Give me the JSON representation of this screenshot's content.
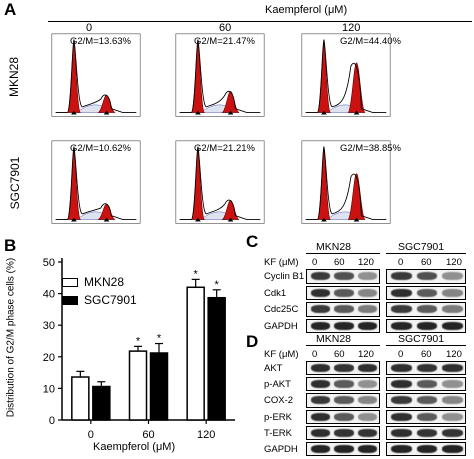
{
  "panels": {
    "A": "A",
    "B": "B",
    "C": "C",
    "D": "D"
  },
  "panelA": {
    "treatment_label": "Kaempferol (μM)",
    "doses": [
      "0",
      "60",
      "120"
    ],
    "cell_lines": [
      "MKN28",
      "SGC7901"
    ],
    "g2m": [
      [
        "G2/M=13.63%",
        "G2/M=21.47%",
        "G2/M=44.40%"
      ],
      [
        "G2/M=10.62%",
        "G2/M=21.21%",
        "G2/M=38.85%"
      ]
    ]
  },
  "chart_data": {
    "type": "bar",
    "categories": [
      "0",
      "60",
      "120"
    ],
    "xlabel": "Kaempferol (μM)",
    "ylabel": "Distribution of G2/M phase cells (%)",
    "ylim": [
      0,
      50
    ],
    "yticks": [
      "0",
      "10",
      "20",
      "30",
      "40",
      "50"
    ],
    "series": [
      {
        "name": "MKN28",
        "values": [
          13.6,
          21.8,
          42.0
        ],
        "errors": [
          1.8,
          1.5,
          2.5
        ],
        "color": "#ffffff"
      },
      {
        "name": "SGC7901",
        "values": [
          10.6,
          21.2,
          38.7
        ],
        "errors": [
          1.5,
          3.0,
          2.5
        ],
        "color": "#000000"
      }
    ],
    "significance": [
      false,
      true,
      true
    ],
    "significance_mark": "*",
    "legend": "top-left"
  },
  "panelC": {
    "kf_label": "KF (μM)",
    "groups": [
      "MKN28",
      "SGC7901"
    ],
    "doses": [
      "0",
      "60",
      "120"
    ],
    "proteins": [
      "Cyclin B1",
      "Cdk1",
      "Cdc25C",
      "GAPDH"
    ]
  },
  "panelD": {
    "kf_label": "KF (μM)",
    "groups": [
      "MKN28",
      "SGC7901"
    ],
    "doses": [
      "0",
      "60",
      "120"
    ],
    "proteins": [
      "AKT",
      "p-AKT",
      "COX-2",
      "p-ERK",
      "T-ERK",
      "GAPDH"
    ]
  }
}
